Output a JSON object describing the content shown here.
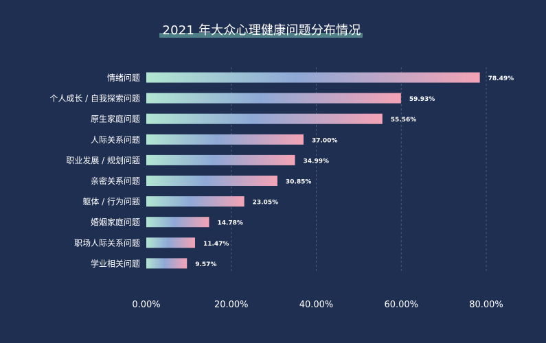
{
  "chart_data": {
    "type": "bar",
    "orientation": "horizontal",
    "title": "2021 年大众心理健康问题分布情况",
    "categories": [
      "情绪问题",
      "个人成长 / 自我探索问题",
      "原生家庭问题",
      "人际关系问题",
      "职业发展 / 规划问题",
      "亲密关系问题",
      "躯体 / 行为问题",
      "婚姻家庭问题",
      "职场人际关系问题",
      "学业相关问题"
    ],
    "values": [
      78.49,
      59.93,
      55.56,
      37.0,
      34.99,
      30.85,
      23.05,
      14.78,
      11.47,
      9.57
    ],
    "value_labels": [
      "78.49%",
      "59.93%",
      "55.56%",
      "37.00%",
      "34.99%",
      "30.85%",
      "23.05%",
      "14.78%",
      "11.47%",
      "9.57%"
    ],
    "xlim": [
      0,
      80
    ],
    "xticks": [
      0,
      20,
      40,
      60,
      80
    ],
    "xtick_labels": [
      "0.00%",
      "20.00%",
      "40.00%",
      "60.00%",
      "80.00%"
    ],
    "grid": "vertical dashed",
    "colors": {
      "background": "#1f2f52",
      "gradient_start": "#b2e6d1",
      "gradient_mid": "#8fa9d6",
      "gradient_end": "#f4a3b5",
      "title_underline": "#4e7f86",
      "label": "#ffffff",
      "grid": "#4a5b7e"
    }
  }
}
